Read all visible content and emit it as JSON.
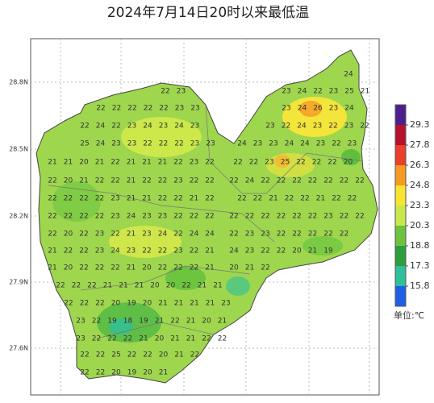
{
  "title": "2024年7月14日20时以来最低温",
  "lat_labels": [
    "28.8N",
    "28.5N",
    "28.2N",
    "27.9N",
    "27.6N"
  ],
  "colorbar": {
    "ticks": [
      29.3,
      27.8,
      26.3,
      24.8,
      23.3,
      20.3,
      18.8,
      17.3,
      15.8
    ],
    "colors": [
      "#4b1f8c",
      "#b5102c",
      "#e8402a",
      "#f59a23",
      "#f8e52f",
      "#c9e84e",
      "#6cc43e",
      "#2e9e3c",
      "#2fbf9a",
      "#1f5fe6"
    ],
    "unit": "单位:℃"
  },
  "stations": [
    [
      24
    ],
    [
      22,
      23
    ],
    [
      23,
      24,
      22,
      23,
      25,
      21
    ],
    [
      22,
      22,
      22,
      22,
      22,
      23,
      23
    ],
    [
      23,
      24,
      26,
      23,
      24
    ],
    [
      22,
      24,
      22,
      23,
      24,
      23,
      24,
      23
    ],
    [
      23,
      22,
      24,
      23,
      22,
      23,
      22
    ],
    [
      25,
      24,
      23,
      23,
      22,
      22,
      22,
      23,
      23
    ],
    [
      24,
      23,
      23,
      24,
      24,
      23,
      22,
      23
    ],
    [
      21,
      21,
      20,
      21,
      22,
      21,
      21,
      21,
      22,
      23,
      22
    ],
    [
      22,
      22,
      23,
      25,
      22,
      22,
      22,
      20
    ],
    [
      22,
      20,
      21,
      22,
      22,
      21,
      22,
      22,
      23,
      22,
      22
    ],
    [
      22,
      24,
      22,
      22,
      22,
      22,
      22,
      22,
      22
    ],
    [
      22,
      22,
      22,
      22,
      23,
      21,
      21,
      22,
      22,
      21,
      22
    ],
    [
      22,
      22,
      21,
      22,
      22,
      21,
      22,
      22
    ],
    [
      22,
      22,
      22,
      22,
      23,
      24,
      23,
      23,
      22,
      22,
      22
    ],
    [
      22,
      22,
      22,
      22,
      22,
      22,
      23,
      22,
      22
    ],
    [
      22,
      20,
      22,
      23,
      22,
      21,
      23,
      24,
      22,
      24,
      24
    ],
    [
      22,
      23,
      23,
      22,
      22,
      22,
      22,
      22
    ],
    [
      21,
      22,
      22,
      23,
      24,
      23,
      22,
      22,
      23,
      22,
      21
    ],
    [
      24,
      23,
      22,
      22,
      20,
      21,
      19
    ],
    [
      21,
      20,
      22,
      22,
      22,
      21,
      20,
      22,
      22,
      22,
      21
    ],
    [
      20,
      21,
      22
    ],
    [
      22,
      22,
      22,
      21,
      21,
      21,
      20,
      20,
      22,
      21,
      21
    ],
    [
      22,
      22,
      22,
      20,
      19,
      20,
      21,
      21,
      21,
      21,
      23
    ],
    [
      23,
      22,
      19,
      18,
      19,
      21,
      22,
      21,
      20,
      21
    ],
    [
      23,
      22,
      22,
      22,
      21,
      20,
      21,
      21,
      22,
      22
    ],
    [
      22,
      22,
      25,
      22,
      22,
      20,
      21,
      22
    ],
    [
      22,
      22,
      20,
      19,
      20,
      21
    ]
  ]
}
